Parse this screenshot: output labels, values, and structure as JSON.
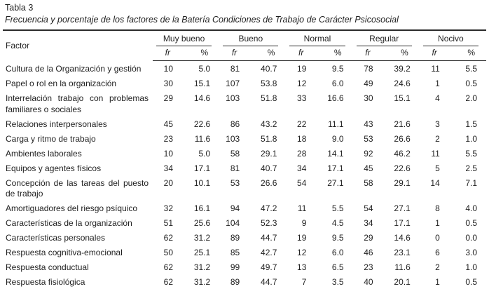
{
  "table": {
    "title": "Tabla 3",
    "subtitle": "Frecuencia y porcentaje de los factores de la Batería Condiciones de Trabajo de Carácter Psicosocial",
    "factor_header": "Factor",
    "groups": [
      {
        "label": "Muy bueno"
      },
      {
        "label": "Bueno"
      },
      {
        "label": "Normal"
      },
      {
        "label": "Regular"
      },
      {
        "label": "Nocivo"
      }
    ],
    "subheaders": {
      "fr": "fr",
      "pct": "%"
    },
    "rows": [
      {
        "factor": "Cultura de la Organización y gestión",
        "values": [
          "10",
          "5.0",
          "81",
          "40.7",
          "19",
          "9.5",
          "78",
          "39.2",
          "11",
          "5.5"
        ]
      },
      {
        "factor": "Papel o rol en la organización",
        "values": [
          "30",
          "15.1",
          "107",
          "53.8",
          "12",
          "6.0",
          "49",
          "24.6",
          "1",
          "0.5"
        ]
      },
      {
        "factor": "Interrelación trabajo con problemas familiares o sociales",
        "values": [
          "29",
          "14.6",
          "103",
          "51.8",
          "33",
          "16.6",
          "30",
          "15.1",
          "4",
          "2.0"
        ]
      },
      {
        "factor": "Relaciones interpersonales",
        "values": [
          "45",
          "22.6",
          "86",
          "43.2",
          "22",
          "11.1",
          "43",
          "21.6",
          "3",
          "1.5"
        ]
      },
      {
        "factor": "Carga y ritmo de trabajo",
        "values": [
          "23",
          "11.6",
          "103",
          "51.8",
          "18",
          "9.0",
          "53",
          "26.6",
          "2",
          "1.0"
        ]
      },
      {
        "factor": "Ambientes laborales",
        "values": [
          "10",
          "5.0",
          "58",
          "29.1",
          "28",
          "14.1",
          "92",
          "46.2",
          "11",
          "5.5"
        ]
      },
      {
        "factor": "Equipos y agentes físicos",
        "values": [
          "34",
          "17.1",
          "81",
          "40.7",
          "34",
          "17.1",
          "45",
          "22.6",
          "5",
          "2.5"
        ]
      },
      {
        "factor": "Concepción de las tareas del puesto de trabajo",
        "values": [
          "20",
          "10.1",
          "53",
          "26.6",
          "54",
          "27.1",
          "58",
          "29.1",
          "14",
          "7.1"
        ]
      },
      {
        "factor": "Amortiguadores del riesgo psíquico",
        "values": [
          "32",
          "16.1",
          "94",
          "47.2",
          "11",
          "5.5",
          "54",
          "27.1",
          "8",
          "4.0"
        ]
      },
      {
        "factor": "Características de la organización",
        "values": [
          "51",
          "25.6",
          "104",
          "52.3",
          "9",
          "4.5",
          "34",
          "17.1",
          "1",
          "0.5"
        ]
      },
      {
        "factor": "Características personales",
        "values": [
          "62",
          "31.2",
          "89",
          "44.7",
          "19",
          "9.5",
          "29",
          "14.6",
          "0",
          "0.0"
        ]
      },
      {
        "factor": "Respuesta cognitiva-emocional",
        "values": [
          "50",
          "25.1",
          "85",
          "42.7",
          "12",
          "6.0",
          "46",
          "23.1",
          "6",
          "3.0"
        ]
      },
      {
        "factor": "Respuesta conductual",
        "values": [
          "62",
          "31.2",
          "99",
          "49.7",
          "13",
          "6.5",
          "23",
          "11.6",
          "2",
          "1.0"
        ]
      },
      {
        "factor": "Respuesta fisiológica",
        "values": [
          "62",
          "31.2",
          "89",
          "44.7",
          "7",
          "3.5",
          "40",
          "20.1",
          "1",
          "0.5"
        ]
      }
    ]
  }
}
